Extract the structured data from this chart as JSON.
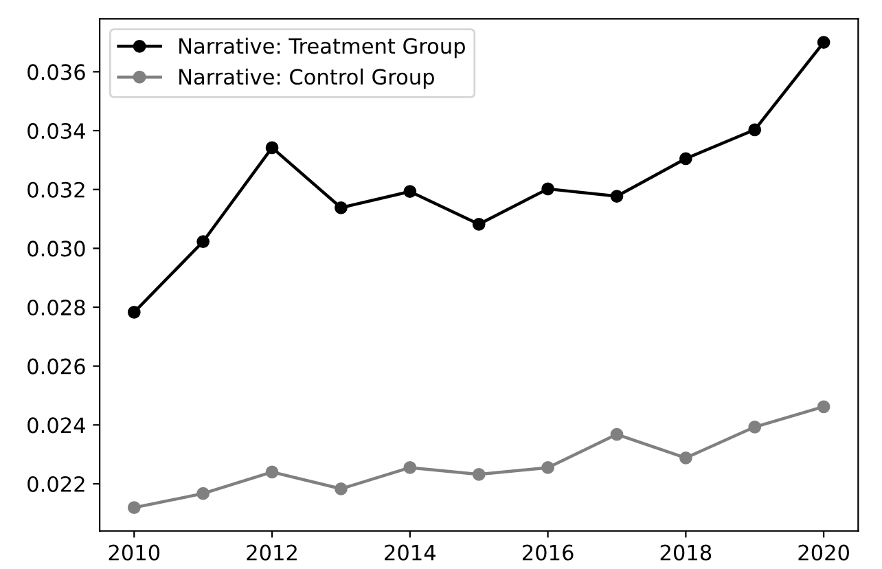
{
  "chart_data": {
    "type": "line",
    "x": [
      2010,
      2011,
      2012,
      2013,
      2014,
      2015,
      2016,
      2017,
      2018,
      2019,
      2020
    ],
    "series": [
      {
        "name": "Narrative: Treatment Group",
        "color": "#000000",
        "values": [
          0.02783,
          0.03023,
          0.03342,
          0.03138,
          0.03193,
          0.03082,
          0.03202,
          0.03177,
          0.03305,
          0.03403,
          0.037
        ]
      },
      {
        "name": "Narrative: Control Group",
        "color": "#808080",
        "values": [
          0.02119,
          0.02167,
          0.0224,
          0.02183,
          0.02255,
          0.02232,
          0.02255,
          0.02368,
          0.02288,
          0.02393,
          0.02462
        ]
      }
    ],
    "xlim": [
      2009.5,
      2020.5
    ],
    "xticks": [
      2010,
      2012,
      2014,
      2016,
      2018,
      2020
    ],
    "ylim": [
      0.0204,
      0.0378
    ],
    "yticks": [
      0.022,
      0.024,
      0.026,
      0.028,
      {
        "value": 0.03,
        "label": "0.030"
      },
      0.032,
      0.034,
      0.036
    ],
    "marker": "circle",
    "line_style": "solid",
    "grid": false,
    "legend": "top left"
  }
}
